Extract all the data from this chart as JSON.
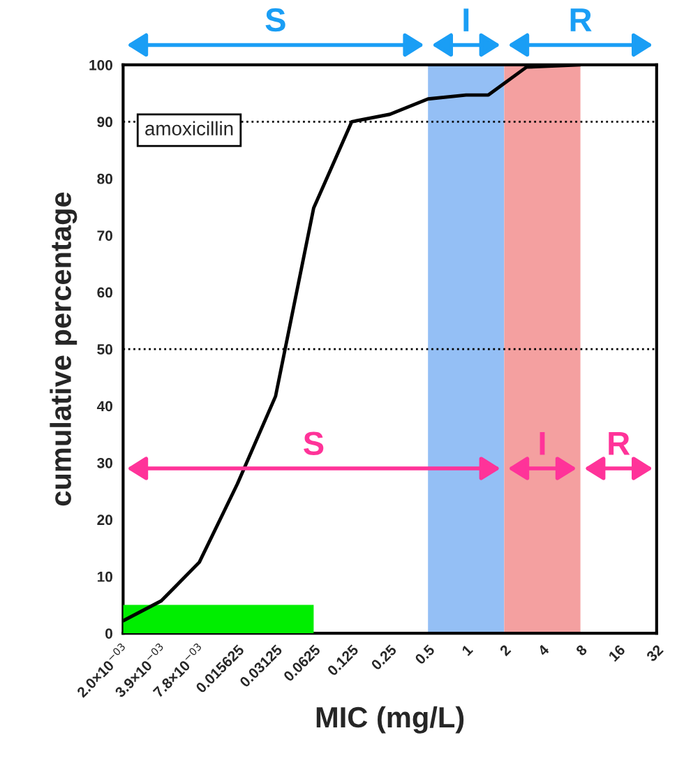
{
  "chart_data": {
    "type": "line",
    "xlabel": "MIC (mg/L)",
    "ylabel": "cumulative percentage",
    "log": "x",
    "grid": false,
    "xlim": [
      0.001953125,
      32
    ],
    "xticks": [
      {
        "value": 0.001953125,
        "label": "2.0×10$^{−03}$"
      },
      {
        "value": 0.00390625,
        "label": "3.9×10$^{−03}$"
      },
      {
        "value": 0.0078125,
        "label": "7.8×10$^{−03}$"
      },
      0.015625,
      0.03125,
      0.0625,
      0.125,
      0.25,
      0.5,
      1,
      2,
      4,
      8,
      16,
      32
    ],
    "ylim": [
      0,
      100
    ],
    "yticks": [
      0,
      10,
      20,
      30,
      40,
      50,
      60,
      70,
      80,
      90,
      100
    ],
    "series": [
      {
        "type": "area",
        "color": "#00ee00",
        "x": [
          0.001953125,
          0.0625
        ],
        "values": [
          5,
          5
        ]
      },
      {
        "color": "#000000",
        "x": [
          0.001953125,
          0.00390625,
          0.0078125,
          0.015625,
          0.03125,
          0.0625,
          0.125,
          0.25,
          0.5,
          1,
          1.5,
          3,
          8
        ],
        "values": [
          2.2,
          5.7,
          12.5,
          26.3,
          41.7,
          74.8,
          90,
          91.3,
          94,
          94.7,
          94.7,
          99.6,
          100
        ]
      }
    ],
    "ref_lines": [
      {
        "axis": "y",
        "value": 90,
        "line_style": "dotted",
        "color": "#000000"
      },
      {
        "axis": "y",
        "value": 50,
        "line_style": "dotted",
        "color": "#000000"
      }
    ],
    "bands": [
      {
        "axis": "x",
        "from": 0.5,
        "to": 2,
        "color": "#94bff5"
      },
      {
        "axis": "x",
        "from": 2,
        "to": 8,
        "color": "#f4a0a0"
      }
    ],
    "annotations": [
      "amoxicillin",
      "S",
      "I",
      "R",
      "S",
      "I",
      "R"
    ]
  }
}
